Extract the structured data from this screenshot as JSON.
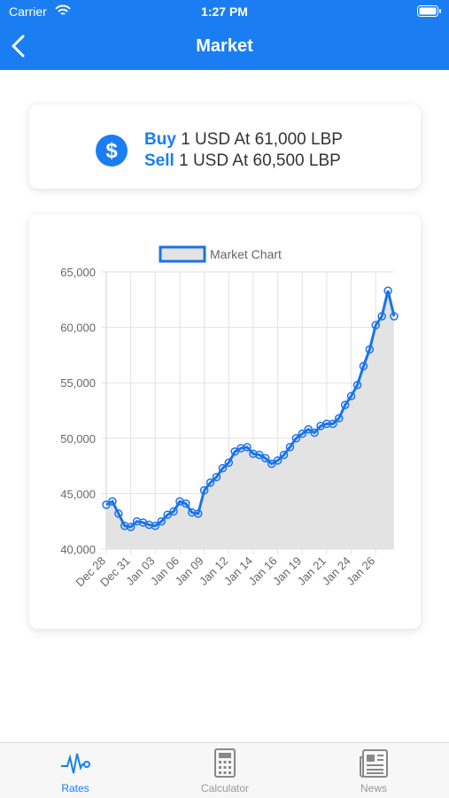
{
  "status_bar": {
    "carrier": "Carrier",
    "time": "1:27 PM"
  },
  "nav": {
    "title": "Market"
  },
  "rate_card": {
    "buy_label": "Buy",
    "buy_text": "1 USD At 61,000 LBP",
    "sell_label": "Sell",
    "sell_text": "1 USD At 60,500 LBP"
  },
  "chart_data": {
    "type": "line",
    "categories": [
      "Dec 28",
      null,
      null,
      null,
      "Dec 31",
      null,
      null,
      null,
      "Jan 03",
      null,
      null,
      null,
      "Jan 06",
      null,
      null,
      null,
      "Jan 09",
      null,
      null,
      null,
      "Jan 12",
      null,
      null,
      null,
      "Jan 14",
      null,
      null,
      null,
      "Jan 16",
      null,
      null,
      null,
      "Jan 19",
      null,
      null,
      null,
      "Jan 21",
      null,
      null,
      null,
      "Jan 24",
      null,
      null,
      null,
      "Jan 26",
      null,
      null,
      null
    ],
    "series": [
      {
        "name": "Market Chart",
        "color": "#1a73e8",
        "fill": "#e3e3e3",
        "values": [
          44000,
          44300,
          43200,
          42100,
          42000,
          42500,
          42400,
          42200,
          42100,
          42500,
          43100,
          43400,
          44300,
          44100,
          43300,
          43200,
          45300,
          46000,
          46500,
          47300,
          47800,
          48800,
          49100,
          49200,
          48600,
          48500,
          48200,
          47700,
          48000,
          48500,
          49200,
          50000,
          50400,
          50800,
          50500,
          51100,
          51300,
          51300,
          51800,
          53000,
          53800,
          54800,
          56500,
          58000,
          60200,
          61000,
          63300,
          61000
        ]
      }
    ],
    "ylim": [
      40000,
      65000
    ],
    "yticks": [
      {
        "value": 40000,
        "label": "40,000"
      },
      {
        "value": 45000,
        "label": "45,000"
      },
      {
        "value": 50000,
        "label": "50,000"
      },
      {
        "value": 55000,
        "label": "55,000"
      },
      {
        "value": 60000,
        "label": "60,000"
      },
      {
        "value": 65000,
        "label": "65,000"
      }
    ],
    "grid": true,
    "legend": "top"
  },
  "tabs": [
    {
      "label": "Rates"
    },
    {
      "label": "Calculator"
    },
    {
      "label": "News"
    }
  ]
}
